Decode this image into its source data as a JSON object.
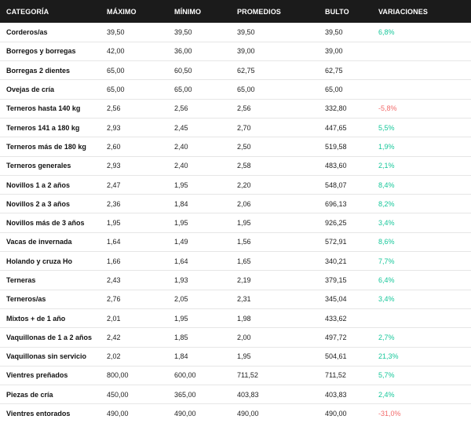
{
  "table": {
    "headers": [
      "CATEGORÍA",
      "MÁXIMO",
      "MÍNIMO",
      "PROMEDIOS",
      "BULTO",
      "VARIACIONES"
    ],
    "rows": [
      {
        "categoria": "Corderos/as",
        "maximo": "39,50",
        "minimo": "39,50",
        "promedio": "39,50",
        "bulto": "39,50",
        "variacion": "6,8%",
        "trend": "pos"
      },
      {
        "categoria": "Borregos y borregas",
        "maximo": "42,00",
        "minimo": "36,00",
        "promedio": "39,00",
        "bulto": "39,00",
        "variacion": "",
        "trend": ""
      },
      {
        "categoria": "Borregas 2 dientes",
        "maximo": "65,00",
        "minimo": "60,50",
        "promedio": "62,75",
        "bulto": "62,75",
        "variacion": "",
        "trend": ""
      },
      {
        "categoria": "Ovejas de cría",
        "maximo": "65,00",
        "minimo": "65,00",
        "promedio": "65,00",
        "bulto": "65,00",
        "variacion": "",
        "trend": ""
      },
      {
        "categoria": "Terneros hasta 140 kg",
        "maximo": "2,56",
        "minimo": "2,56",
        "promedio": "2,56",
        "bulto": "332,80",
        "variacion": "-5,8%",
        "trend": "neg"
      },
      {
        "categoria": "Terneros 141 a 180 kg",
        "maximo": "2,93",
        "minimo": "2,45",
        "promedio": "2,70",
        "bulto": "447,65",
        "variacion": "5,5%",
        "trend": "pos"
      },
      {
        "categoria": "Terneros más de 180 kg",
        "maximo": "2,60",
        "minimo": "2,40",
        "promedio": "2,50",
        "bulto": "519,58",
        "variacion": "1,9%",
        "trend": "pos"
      },
      {
        "categoria": "Terneros generales",
        "maximo": "2,93",
        "minimo": "2,40",
        "promedio": "2,58",
        "bulto": "483,60",
        "variacion": "2,1%",
        "trend": "pos"
      },
      {
        "categoria": "Novillos 1 a 2 años",
        "maximo": "2,47",
        "minimo": "1,95",
        "promedio": "2,20",
        "bulto": "548,07",
        "variacion": "8,4%",
        "trend": "pos"
      },
      {
        "categoria": "Novillos 2 a 3 años",
        "maximo": "2,36",
        "minimo": "1,84",
        "promedio": "2,06",
        "bulto": "696,13",
        "variacion": "8,2%",
        "trend": "pos"
      },
      {
        "categoria": "Novillos más de 3 años",
        "maximo": "1,95",
        "minimo": "1,95",
        "promedio": "1,95",
        "bulto": "926,25",
        "variacion": "3,4%",
        "trend": "pos"
      },
      {
        "categoria": "Vacas de invernada",
        "maximo": "1,64",
        "minimo": "1,49",
        "promedio": "1,56",
        "bulto": "572,91",
        "variacion": "8,6%",
        "trend": "pos"
      },
      {
        "categoria": "Holando y cruza Ho",
        "maximo": "1,66",
        "minimo": "1,64",
        "promedio": "1,65",
        "bulto": "340,21",
        "variacion": "7,7%",
        "trend": "pos"
      },
      {
        "categoria": "Terneras",
        "maximo": "2,43",
        "minimo": "1,93",
        "promedio": "2,19",
        "bulto": "379,15",
        "variacion": "6,4%",
        "trend": "pos"
      },
      {
        "categoria": "Terneros/as",
        "maximo": "2,76",
        "minimo": "2,05",
        "promedio": "2,31",
        "bulto": "345,04",
        "variacion": "3,4%",
        "trend": "pos"
      },
      {
        "categoria": "Mixtos + de 1 año",
        "maximo": "2,01",
        "minimo": "1,95",
        "promedio": "1,98",
        "bulto": "433,62",
        "variacion": "",
        "trend": ""
      },
      {
        "categoria": "Vaquillonas de 1 a 2 años",
        "maximo": "2,42",
        "minimo": "1,85",
        "promedio": "2,00",
        "bulto": "497,72",
        "variacion": "2,7%",
        "trend": "pos"
      },
      {
        "categoria": "Vaquillonas sin servicio",
        "maximo": "2,02",
        "minimo": "1,84",
        "promedio": "1,95",
        "bulto": "504,61",
        "variacion": "21,3%",
        "trend": "pos"
      },
      {
        "categoria": "Vientres preñados",
        "maximo": "800,00",
        "minimo": "600,00",
        "promedio": "711,52",
        "bulto": "711,52",
        "variacion": "5,7%",
        "trend": "pos"
      },
      {
        "categoria": "Piezas de cría",
        "maximo": "450,00",
        "minimo": "365,00",
        "promedio": "403,83",
        "bulto": "403,83",
        "variacion": "2,4%",
        "trend": "pos"
      },
      {
        "categoria": "Vientres entorados",
        "maximo": "490,00",
        "minimo": "490,00",
        "promedio": "490,00",
        "bulto": "490,00",
        "variacion": "-31,0%",
        "trend": "neg"
      }
    ]
  },
  "colors": {
    "header_bg": "#1b1b1b",
    "positive": "#16c79a",
    "negative": "#f26b6b",
    "row_divider": "#e6e6e6"
  }
}
